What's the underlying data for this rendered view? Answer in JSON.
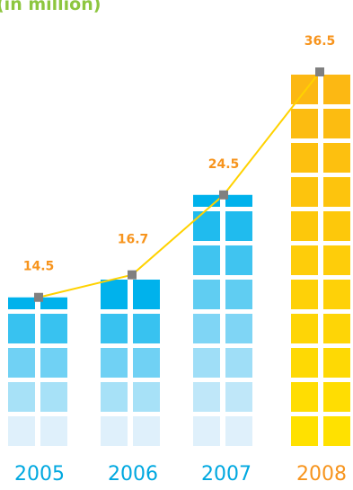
{
  "unit_label": "(in million)",
  "chart_data": {
    "type": "bar",
    "categories": [
      "2005",
      "2006",
      "2007",
      "2008"
    ],
    "values": [
      14.5,
      16.7,
      24.5,
      36.5
    ],
    "data_labels": [
      "14.5",
      "16.7",
      "24.5",
      "36.5"
    ],
    "title": "",
    "xlabel": "",
    "ylabel": "(in million)",
    "ylim": [
      0,
      38
    ],
    "grid": false,
    "overlay": "line",
    "colors": {
      "bar_gradient_bottom": "#dff0fb",
      "bar_gradient_top": "#00b2ec",
      "highlight_bar_top": "#fcb813",
      "highlight_bar_bottom": "#ffe100",
      "line": "#ffd200",
      "marker": "#808080",
      "data_label": "#f7941d",
      "year_label": "#00a8e0",
      "highlight_year_label": "#f7941d"
    }
  }
}
